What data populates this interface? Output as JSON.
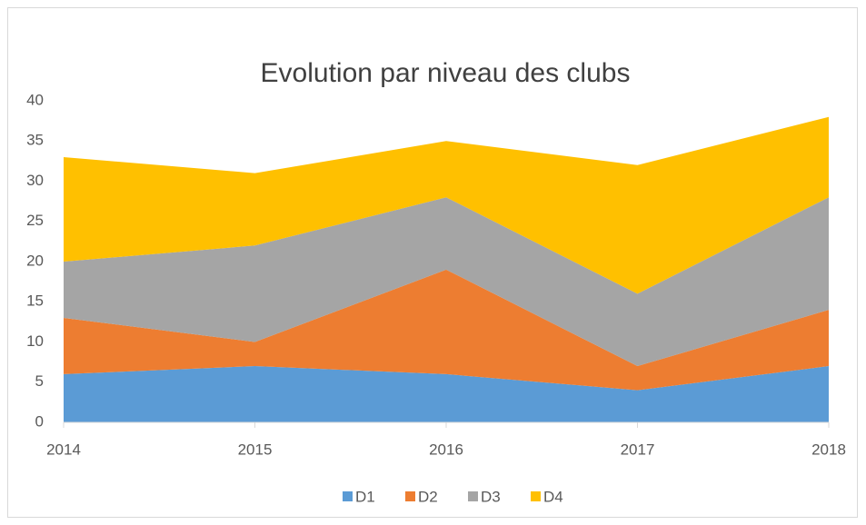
{
  "chart_data": {
    "type": "stacked_area",
    "title": "Evolution par niveau des clubs",
    "categories": [
      "2014",
      "2015",
      "2016",
      "2017",
      "2018"
    ],
    "series": [
      {
        "name": "D1",
        "color": "#5b9bd5",
        "values": [
          6,
          7,
          6,
          4,
          7
        ]
      },
      {
        "name": "D2",
        "color": "#ed7d31",
        "values": [
          7,
          3,
          13,
          3,
          7
        ]
      },
      {
        "name": "D3",
        "color": "#a5a5a5",
        "values": [
          7,
          12,
          9,
          9,
          14
        ]
      },
      {
        "name": "D4",
        "color": "#ffc000",
        "values": [
          13,
          9,
          7,
          16,
          10
        ]
      }
    ],
    "ylim": [
      0,
      40
    ],
    "yticks": [
      0,
      5,
      10,
      15,
      20,
      25,
      30,
      35,
      40
    ],
    "grid": false,
    "legend": "bottom"
  }
}
